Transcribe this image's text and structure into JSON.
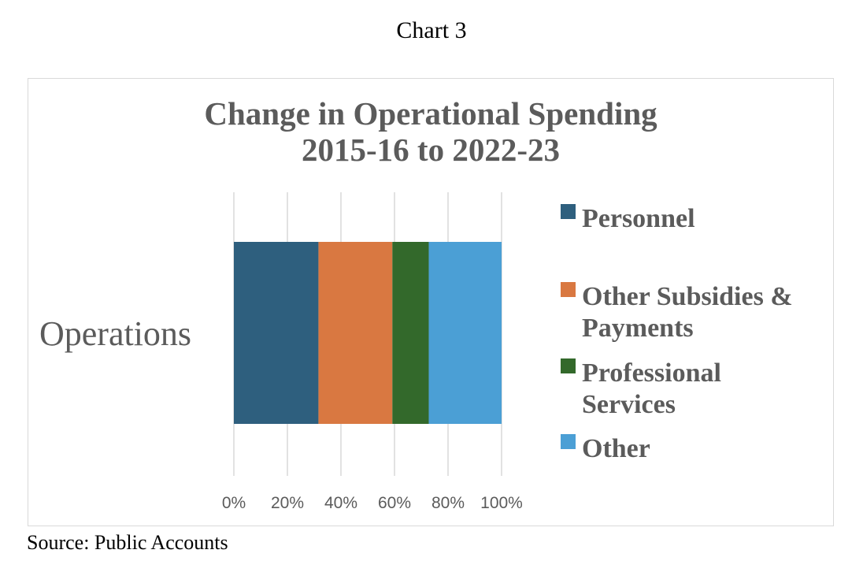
{
  "caption": "Chart 3",
  "source": "Source: Public Accounts",
  "chart_data": {
    "type": "bar",
    "orientation": "horizontal",
    "stacked": "percent",
    "title": "Change in Operational Spending",
    "subtitle": "2015-16 to 2022-23",
    "categories": [
      "Operations"
    ],
    "xlim": [
      0,
      100
    ],
    "x_ticks": [
      "0%",
      "20%",
      "40%",
      "60%",
      "80%",
      "100%"
    ],
    "grid": true,
    "legend_position": "right",
    "series": [
      {
        "name": "Personnel",
        "legend_lines": [
          "Personnel"
        ],
        "values": [
          31.6
        ],
        "color": "#2e5f7e"
      },
      {
        "name": "Other Subsidies & Payments",
        "legend_lines": [
          "Other Subsidies &",
          "Payments"
        ],
        "values": [
          27.6
        ],
        "color": "#d97841"
      },
      {
        "name": "Professional Services",
        "legend_lines": [
          "Professional",
          "Services"
        ],
        "values": [
          13.6
        ],
        "color": "#33692b"
      },
      {
        "name": "Other",
        "legend_lines": [
          "Other"
        ],
        "values": [
          27.2
        ],
        "color": "#4b9fd5"
      }
    ]
  }
}
